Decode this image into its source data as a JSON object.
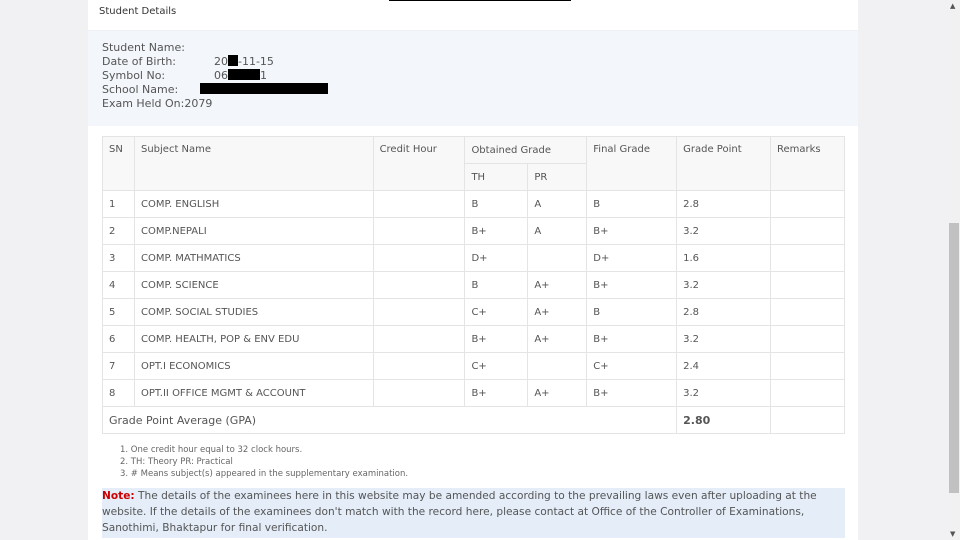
{
  "section_title": "Student Details",
  "details": {
    "name_label": "Student Name:",
    "dob_label": "Date of Birth:",
    "dob_prefix": "20",
    "dob_suffix": "-11-15",
    "symbol_label": "Symbol No:",
    "symbol_prefix": "06",
    "symbol_suffix": "1",
    "school_label": "School Name:",
    "exam_label": "Exam Held On:",
    "exam_value": "2079"
  },
  "table": {
    "headers": {
      "sn": "SN",
      "subject": "Subject Name",
      "credit": "Credit Hour",
      "obtained": "Obtained Grade",
      "th": "TH",
      "pr": "PR",
      "final": "Final Grade",
      "gp": "Grade Point",
      "remarks": "Remarks"
    },
    "rows": [
      {
        "sn": "1",
        "subject": "COMP. ENGLISH",
        "credit": "",
        "th": "B",
        "pr": "A",
        "final": "B",
        "gp": "2.8",
        "remarks": ""
      },
      {
        "sn": "2",
        "subject": "COMP.NEPALI",
        "credit": "",
        "th": "B+",
        "pr": "A",
        "final": "B+",
        "gp": "3.2",
        "remarks": ""
      },
      {
        "sn": "3",
        "subject": "COMP. MATHMATICS",
        "credit": "",
        "th": "D+",
        "pr": "",
        "final": "D+",
        "gp": "1.6",
        "remarks": ""
      },
      {
        "sn": "4",
        "subject": "COMP. SCIENCE",
        "credit": "",
        "th": "B",
        "pr": "A+",
        "final": "B+",
        "gp": "3.2",
        "remarks": ""
      },
      {
        "sn": "5",
        "subject": "COMP. SOCIAL STUDIES",
        "credit": "",
        "th": "C+",
        "pr": "A+",
        "final": "B",
        "gp": "2.8",
        "remarks": ""
      },
      {
        "sn": "6",
        "subject": "COMP. HEALTH, POP & ENV EDU",
        "credit": "",
        "th": "B+",
        "pr": "A+",
        "final": "B+",
        "gp": "3.2",
        "remarks": ""
      },
      {
        "sn": "7",
        "subject": "OPT.I ECONOMICS",
        "credit": "",
        "th": "C+",
        "pr": "",
        "final": "C+",
        "gp": "2.4",
        "remarks": ""
      },
      {
        "sn": "8",
        "subject": "OPT.II OFFICE MGMT & ACCOUNT",
        "credit": "",
        "th": "B+",
        "pr": "A+",
        "final": "B+",
        "gp": "3.2",
        "remarks": ""
      }
    ],
    "gpa_label": "Grade Point Average (GPA)",
    "gpa_value": "2.80"
  },
  "footnotes": [
    "1. One credit hour equal to 32 clock hours.",
    "2. TH: Theory PR: Practical",
    "3. # Means subject(s) appeared in the supplementary examination."
  ],
  "note": {
    "label": "Note:",
    "text": " The details of the examinees here in this website may be amended according to the prevailing laws even after uploading at the website. If the details of the examinees don't match with the record here, please contact at Office of the Controller of Examinations, Sanothimi, Bhaktapur for final verification."
  },
  "colors": {
    "note_label": "#cc0000",
    "details_bg": "#f3f6fb",
    "note_bg": "#e4edf8"
  }
}
